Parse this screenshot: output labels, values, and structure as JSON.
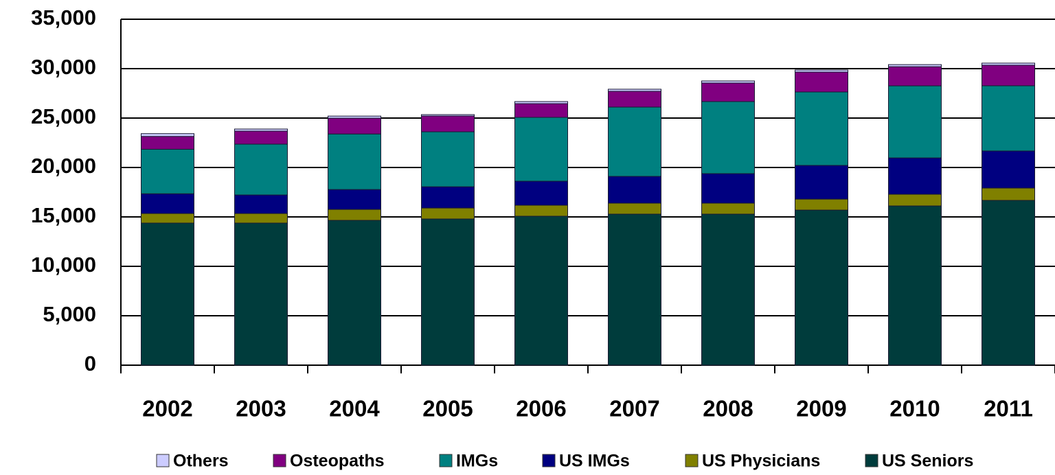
{
  "chart_data": {
    "type": "stacked_bar",
    "categories": [
      "2002",
      "2003",
      "2004",
      "2005",
      "2006",
      "2007",
      "2008",
      "2009",
      "2010",
      "2011"
    ],
    "series": [
      {
        "name": "Others",
        "color": "#ccccff",
        "values": [
          280,
          210,
          210,
          140,
          210,
          210,
          210,
          210,
          210,
          210
        ]
      },
      {
        "name": "Osteopaths",
        "color": "#800080",
        "values": [
          1300,
          1320,
          1600,
          1600,
          1390,
          1600,
          1875,
          2010,
          1940,
          2080
        ]
      },
      {
        "name": "IMGs",
        "color": "#008080",
        "values": [
          4500,
          5140,
          5620,
          5560,
          6460,
          7010,
          7290,
          7430,
          7290,
          6600
        ]
      },
      {
        "name": "US IMGs",
        "color": "#000080",
        "values": [
          2000,
          1875,
          2010,
          2150,
          2430,
          2710,
          2990,
          3410,
          3680,
          3750
        ]
      },
      {
        "name": "US Physicians",
        "color": "#808000",
        "values": [
          970,
          970,
          1110,
          1110,
          1110,
          1110,
          1110,
          1110,
          1180,
          1250
        ]
      },
      {
        "name": "US Seniors",
        "color": "#003c3c",
        "values": [
          14375,
          14375,
          14650,
          14790,
          15070,
          15280,
          15280,
          15690,
          16110,
          16670
        ]
      }
    ],
    "ylim": [
      0,
      35000
    ],
    "yticks": [
      {
        "value": 0,
        "label": "0"
      },
      {
        "value": 5000,
        "label": "5,000"
      },
      {
        "value": 10000,
        "label": "10,000"
      },
      {
        "value": 15000,
        "label": "15,000"
      },
      {
        "value": 20000,
        "label": "20,000"
      },
      {
        "value": 25000,
        "label": "25,000"
      },
      {
        "value": 30000,
        "label": "30,000"
      },
      {
        "value": 35000,
        "label": "35,000"
      }
    ],
    "grid": true,
    "legend": "bottom"
  }
}
